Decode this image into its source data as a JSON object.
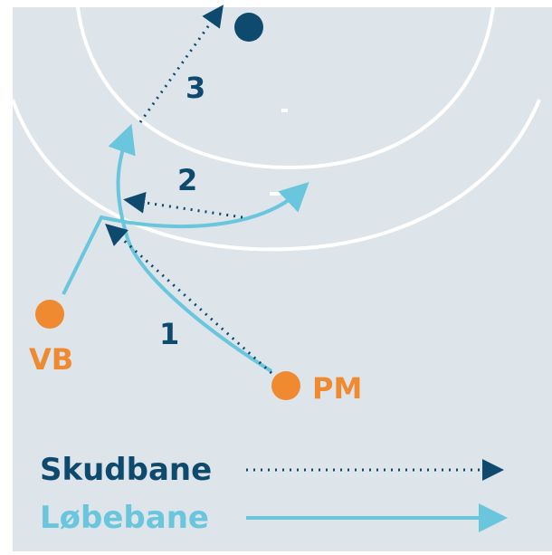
{
  "players": [
    {
      "label": "VB"
    },
    {
      "label": "PM"
    }
  ],
  "steps": [
    "1",
    "2",
    "3"
  ],
  "legend": [
    {
      "label": "Skudbane"
    },
    {
      "label": "Løbebane"
    }
  ]
}
